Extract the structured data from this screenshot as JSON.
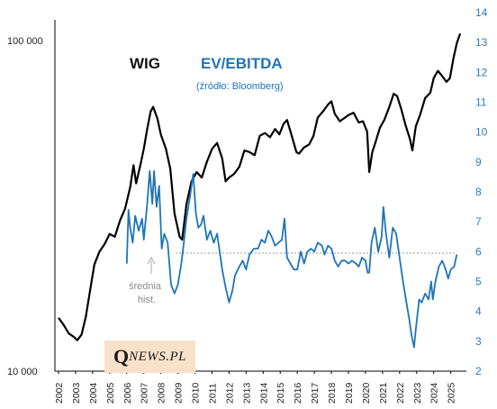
{
  "chart_data": {
    "type": "line",
    "title": "WIG",
    "title2": "EV/EBITDA",
    "subtitle": "(źródło: Bloomberg)",
    "colors": {
      "wig": "#000000",
      "ev": "#1f74b8",
      "avg": "#9a9a9a"
    },
    "y_left": {
      "scale": "log",
      "range": [
        10000,
        100000
      ],
      "tick_labels": [
        "10 000",
        "100 000"
      ]
    },
    "y_right": {
      "range": [
        2,
        14
      ],
      "ticks": [
        "2",
        "3",
        "4",
        "5",
        "6",
        "7",
        "8",
        "9",
        "10",
        "11",
        "12",
        "13",
        "14"
      ]
    },
    "x": {
      "range": [
        2002,
        2025.6
      ],
      "tick_labels": [
        "2002",
        "2003",
        "2004",
        "2005",
        "2006",
        "2007",
        "2008",
        "2009",
        "2010",
        "2011",
        "2012",
        "2013",
        "2014",
        "2015",
        "2016",
        "2017",
        "2018",
        "2019",
        "2020",
        "2021",
        "2022",
        "2023",
        "2024",
        "2025"
      ]
    },
    "average_line": {
      "value": 5.95,
      "label_lines": [
        "średnia",
        "hist."
      ]
    },
    "series": [
      {
        "name": "WIG",
        "axis": "left",
        "points": [
          [
            2002.0,
            14500
          ],
          [
            2002.3,
            13800
          ],
          [
            2002.6,
            13000
          ],
          [
            2002.9,
            12700
          ],
          [
            2003.1,
            12400
          ],
          [
            2003.35,
            12900
          ],
          [
            2003.6,
            14600
          ],
          [
            2003.85,
            17500
          ],
          [
            2004.1,
            21000
          ],
          [
            2004.4,
            23000
          ],
          [
            2004.7,
            24200
          ],
          [
            2005.0,
            26000
          ],
          [
            2005.3,
            25500
          ],
          [
            2005.6,
            28500
          ],
          [
            2005.9,
            31000
          ],
          [
            2006.2,
            36000
          ],
          [
            2006.4,
            42000
          ],
          [
            2006.55,
            37000
          ],
          [
            2006.8,
            42000
          ],
          [
            2007.0,
            47000
          ],
          [
            2007.2,
            54000
          ],
          [
            2007.4,
            61000
          ],
          [
            2007.55,
            63000
          ],
          [
            2007.8,
            58000
          ],
          [
            2008.0,
            52000
          ],
          [
            2008.3,
            47000
          ],
          [
            2008.55,
            41000
          ],
          [
            2008.8,
            30000
          ],
          [
            2009.1,
            25500
          ],
          [
            2009.25,
            25000
          ],
          [
            2009.5,
            32000
          ],
          [
            2009.8,
            37500
          ],
          [
            2010.1,
            40000
          ],
          [
            2010.4,
            38500
          ],
          [
            2010.7,
            43000
          ],
          [
            2011.0,
            47000
          ],
          [
            2011.3,
            49000
          ],
          [
            2011.6,
            44000
          ],
          [
            2011.8,
            37500
          ],
          [
            2012.0,
            38500
          ],
          [
            2012.3,
            39500
          ],
          [
            2012.6,
            41500
          ],
          [
            2012.9,
            46500
          ],
          [
            2013.2,
            46000
          ],
          [
            2013.5,
            45000
          ],
          [
            2013.8,
            51500
          ],
          [
            2014.1,
            52500
          ],
          [
            2014.4,
            51000
          ],
          [
            2014.7,
            54000
          ],
          [
            2014.95,
            52000
          ],
          [
            2015.2,
            56000
          ],
          [
            2015.4,
            57500
          ],
          [
            2015.7,
            51000
          ],
          [
            2015.95,
            46000
          ],
          [
            2016.1,
            45500
          ],
          [
            2016.4,
            47500
          ],
          [
            2016.7,
            48500
          ],
          [
            2016.95,
            51500
          ],
          [
            2017.2,
            58500
          ],
          [
            2017.5,
            61000
          ],
          [
            2017.8,
            64000
          ],
          [
            2018.0,
            65500
          ],
          [
            2018.2,
            60000
          ],
          [
            2018.5,
            57000
          ],
          [
            2018.8,
            58500
          ],
          [
            2019.0,
            59500
          ],
          [
            2019.3,
            60500
          ],
          [
            2019.6,
            56500
          ],
          [
            2019.85,
            57000
          ],
          [
            2020.1,
            53000
          ],
          [
            2020.22,
            40000
          ],
          [
            2020.4,
            46000
          ],
          [
            2020.6,
            49500
          ],
          [
            2020.85,
            54500
          ],
          [
            2021.1,
            57500
          ],
          [
            2021.4,
            63000
          ],
          [
            2021.65,
            69000
          ],
          [
            2021.85,
            68000
          ],
          [
            2022.1,
            62000
          ],
          [
            2022.35,
            55500
          ],
          [
            2022.6,
            50500
          ],
          [
            2022.75,
            46500
          ],
          [
            2022.95,
            55000
          ],
          [
            2023.2,
            59500
          ],
          [
            2023.5,
            67000
          ],
          [
            2023.8,
            69500
          ],
          [
            2024.0,
            77000
          ],
          [
            2024.25,
            81000
          ],
          [
            2024.5,
            78000
          ],
          [
            2024.75,
            75000
          ],
          [
            2024.95,
            77000
          ],
          [
            2025.15,
            88000
          ],
          [
            2025.35,
            98000
          ],
          [
            2025.55,
            105000
          ]
        ]
      },
      {
        "name": "EV/EBITDA",
        "axis": "right",
        "points": [
          [
            2006.0,
            5.6
          ],
          [
            2006.1,
            7.4
          ],
          [
            2006.2,
            6.8
          ],
          [
            2006.35,
            6.3
          ],
          [
            2006.5,
            7.2
          ],
          [
            2006.7,
            6.7
          ],
          [
            2006.9,
            7.1
          ],
          [
            2007.0,
            6.4
          ],
          [
            2007.2,
            7.6
          ],
          [
            2007.35,
            8.7
          ],
          [
            2007.5,
            7.6
          ],
          [
            2007.6,
            8.7
          ],
          [
            2007.75,
            7.5
          ],
          [
            2007.9,
            8.2
          ],
          [
            2008.05,
            6.1
          ],
          [
            2008.2,
            6.6
          ],
          [
            2008.4,
            6.3
          ],
          [
            2008.6,
            4.9
          ],
          [
            2008.8,
            4.6
          ],
          [
            2009.0,
            4.9
          ],
          [
            2009.2,
            5.6
          ],
          [
            2009.35,
            6.3
          ],
          [
            2009.5,
            7.1
          ],
          [
            2009.7,
            7.8
          ],
          [
            2009.9,
            8.6
          ],
          [
            2010.05,
            7.3
          ],
          [
            2010.2,
            6.8
          ],
          [
            2010.35,
            6.9
          ],
          [
            2010.5,
            7.2
          ],
          [
            2010.7,
            6.4
          ],
          [
            2010.9,
            6.7
          ],
          [
            2011.1,
            6.3
          ],
          [
            2011.3,
            6.6
          ],
          [
            2011.45,
            6.0
          ],
          [
            2011.6,
            5.4
          ],
          [
            2011.8,
            4.8
          ],
          [
            2012.0,
            4.3
          ],
          [
            2012.2,
            4.7
          ],
          [
            2012.35,
            5.2
          ],
          [
            2012.6,
            5.5
          ],
          [
            2012.8,
            5.7
          ],
          [
            2013.0,
            5.4
          ],
          [
            2013.2,
            5.9
          ],
          [
            2013.45,
            6.1
          ],
          [
            2013.7,
            6.1
          ],
          [
            2013.9,
            6.4
          ],
          [
            2014.1,
            6.3
          ],
          [
            2014.3,
            6.7
          ],
          [
            2014.5,
            6.5
          ],
          [
            2014.7,
            6.2
          ],
          [
            2014.9,
            6.3
          ],
          [
            2015.1,
            6.4
          ],
          [
            2015.25,
            7.1
          ],
          [
            2015.4,
            5.8
          ],
          [
            2015.6,
            5.6
          ],
          [
            2015.8,
            5.4
          ],
          [
            2016.0,
            5.4
          ],
          [
            2016.2,
            6.0
          ],
          [
            2016.4,
            5.6
          ],
          [
            2016.6,
            6.0
          ],
          [
            2016.8,
            6.1
          ],
          [
            2017.0,
            6.0
          ],
          [
            2017.2,
            6.3
          ],
          [
            2017.45,
            6.2
          ],
          [
            2017.6,
            5.9
          ],
          [
            2017.8,
            6.2
          ],
          [
            2018.0,
            6.1
          ],
          [
            2018.2,
            5.7
          ],
          [
            2018.4,
            5.5
          ],
          [
            2018.6,
            5.7
          ],
          [
            2018.8,
            5.7
          ],
          [
            2019.0,
            5.6
          ],
          [
            2019.2,
            5.7
          ],
          [
            2019.45,
            5.6
          ],
          [
            2019.6,
            5.5
          ],
          [
            2019.8,
            5.8
          ],
          [
            2020.0,
            5.7
          ],
          [
            2020.12,
            5.3
          ],
          [
            2020.22,
            5.3
          ],
          [
            2020.35,
            6.3
          ],
          [
            2020.55,
            6.8
          ],
          [
            2020.75,
            6.0
          ],
          [
            2020.95,
            6.5
          ],
          [
            2021.05,
            7.5
          ],
          [
            2021.2,
            6.6
          ],
          [
            2021.4,
            5.8
          ],
          [
            2021.6,
            6.8
          ],
          [
            2021.8,
            6.6
          ],
          [
            2022.0,
            5.8
          ],
          [
            2022.2,
            5.0
          ],
          [
            2022.4,
            4.3
          ],
          [
            2022.55,
            3.8
          ],
          [
            2022.7,
            3.2
          ],
          [
            2022.85,
            2.8
          ],
          [
            2022.95,
            3.4
          ],
          [
            2023.15,
            4.4
          ],
          [
            2023.3,
            4.3
          ],
          [
            2023.5,
            4.6
          ],
          [
            2023.7,
            4.4
          ],
          [
            2023.85,
            5.0
          ],
          [
            2023.95,
            4.4
          ],
          [
            2024.1,
            5.0
          ],
          [
            2024.3,
            5.5
          ],
          [
            2024.5,
            5.7
          ],
          [
            2024.7,
            5.4
          ],
          [
            2024.85,
            5.1
          ],
          [
            2025.0,
            5.4
          ],
          [
            2025.2,
            5.5
          ],
          [
            2025.35,
            5.9
          ]
        ]
      }
    ]
  },
  "brand": {
    "q": "Q",
    "rest": "NEWS.PL"
  }
}
